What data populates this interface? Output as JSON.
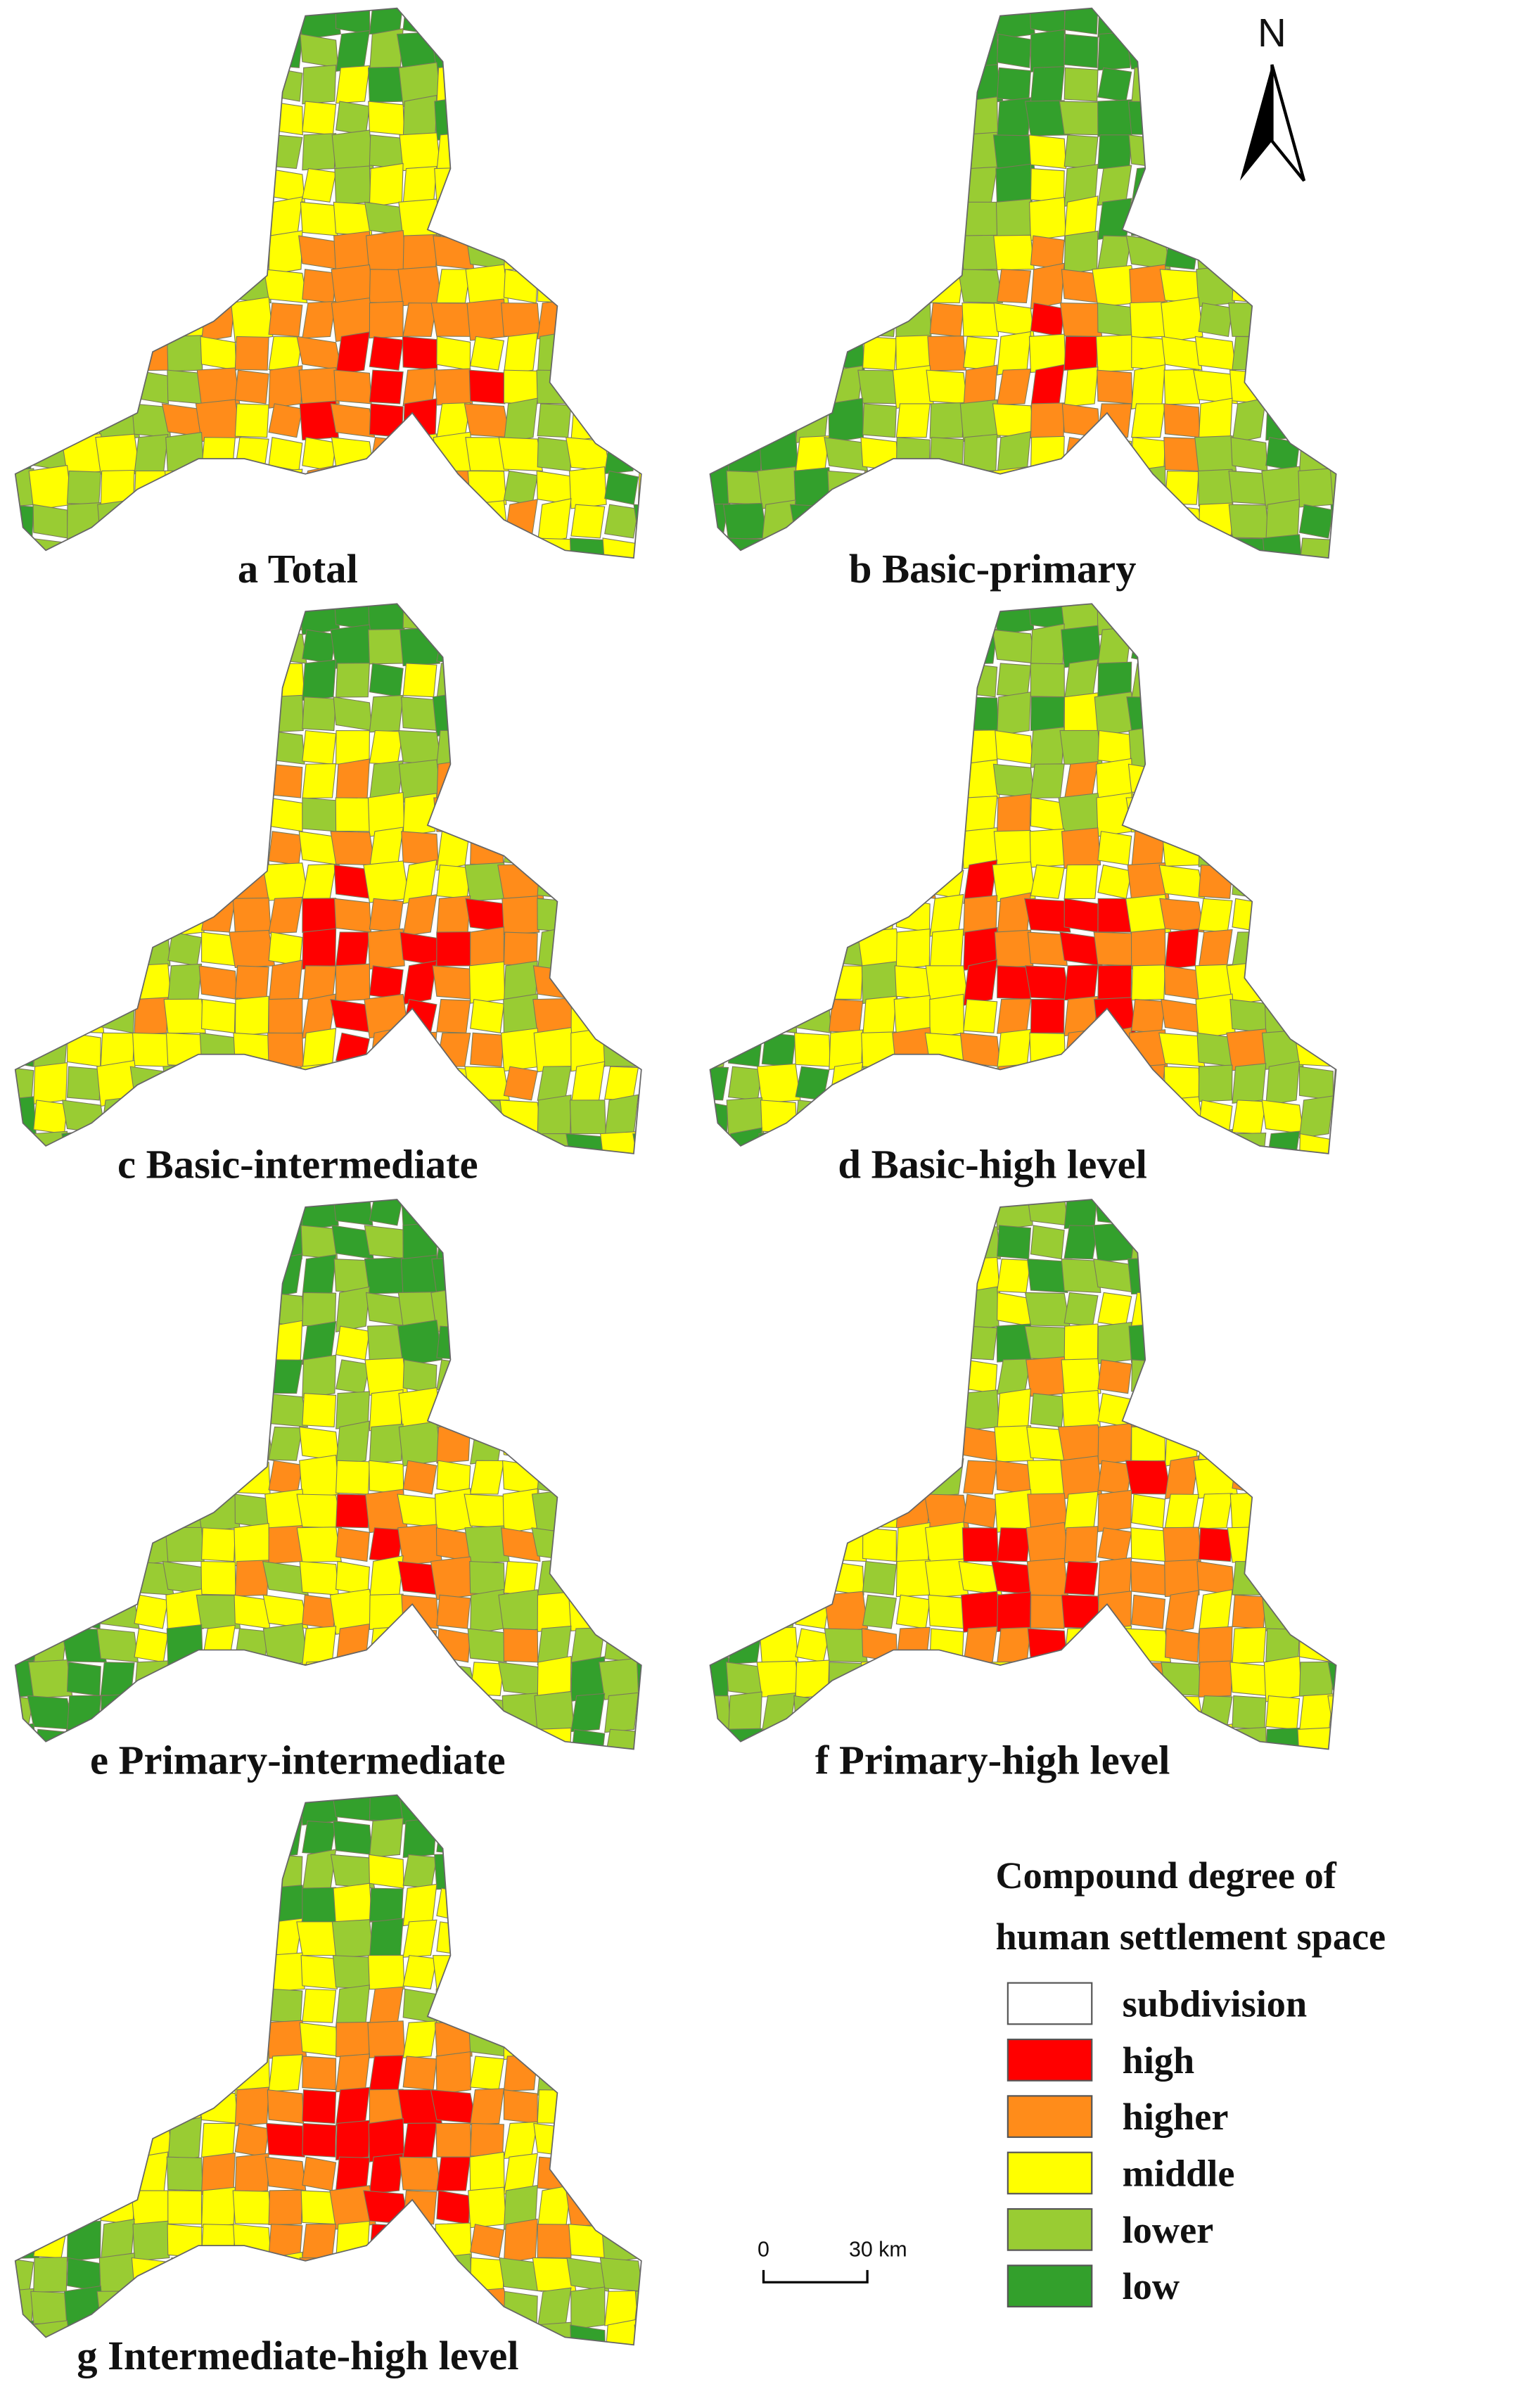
{
  "north_label": "N",
  "panels": [
    {
      "caption": "a Total"
    },
    {
      "caption": "b Basic-primary"
    },
    {
      "caption": "c Basic-intermediate"
    },
    {
      "caption": "d Basic-high level"
    },
    {
      "caption": "e Primary-intermediate"
    },
    {
      "caption": "f Primary-high level"
    },
    {
      "caption": "g Intermediate-high level"
    }
  ],
  "legend": {
    "title": [
      "Compound degree of",
      "human settlement space"
    ],
    "items": [
      {
        "label": "subdivision",
        "color": "#ffffff"
      },
      {
        "label": "high",
        "color": "#ff0000"
      },
      {
        "label": "higher",
        "color": "#ff8c1a"
      },
      {
        "label": "middle",
        "color": "#ffff00"
      },
      {
        "label": "lower",
        "color": "#99cc33"
      },
      {
        "label": "low",
        "color": "#33a02c"
      }
    ]
  },
  "scale_bar": {
    "labels": [
      "0",
      "30 km"
    ]
  }
}
